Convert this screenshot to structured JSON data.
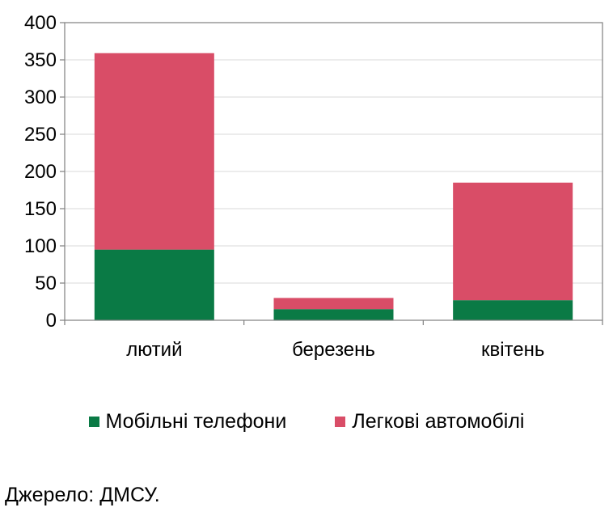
{
  "chart_data": {
    "type": "bar",
    "stacked": true,
    "categories": [
      "лютий",
      "березень",
      "квітень"
    ],
    "series": [
      {
        "name": "Мобільні телефони",
        "color": "#0a7a45",
        "values": [
          95,
          15,
          27
        ]
      },
      {
        "name": "Легкові автомобілі",
        "color": "#d94d67",
        "values": [
          264,
          15,
          158
        ]
      }
    ],
    "title": "",
    "xlabel": "",
    "ylabel": "",
    "ylim": [
      0,
      400
    ],
    "yticks": [
      0,
      50,
      100,
      150,
      200,
      250,
      300,
      350,
      400
    ],
    "grid": true,
    "legend": "bottom"
  },
  "source": "Джерело: ДМСУ."
}
